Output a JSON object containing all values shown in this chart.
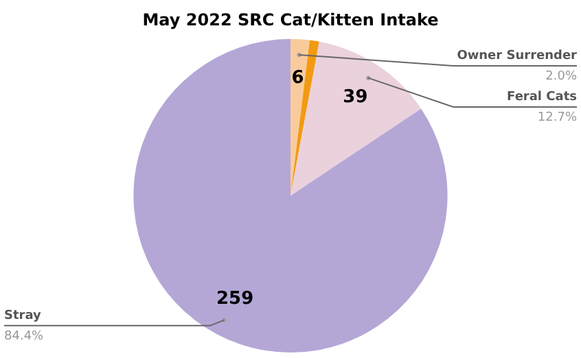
{
  "chart_data": {
    "type": "pie",
    "title": "May 2022 SRC Cat/Kitten Intake",
    "categories": [
      "Owner Surrender",
      null,
      "Feral Cats",
      "Stray"
    ],
    "values": [
      6,
      3,
      39,
      259
    ],
    "colors": [
      "#f9cb9c",
      "#f29a12",
      "#ead1dc",
      "#b4a7d6"
    ],
    "value_labels": [
      "6",
      null,
      "39",
      "259"
    ],
    "annotations": [
      "2.0%",
      "12.7%",
      "84.4%"
    ],
    "legend": false
  }
}
